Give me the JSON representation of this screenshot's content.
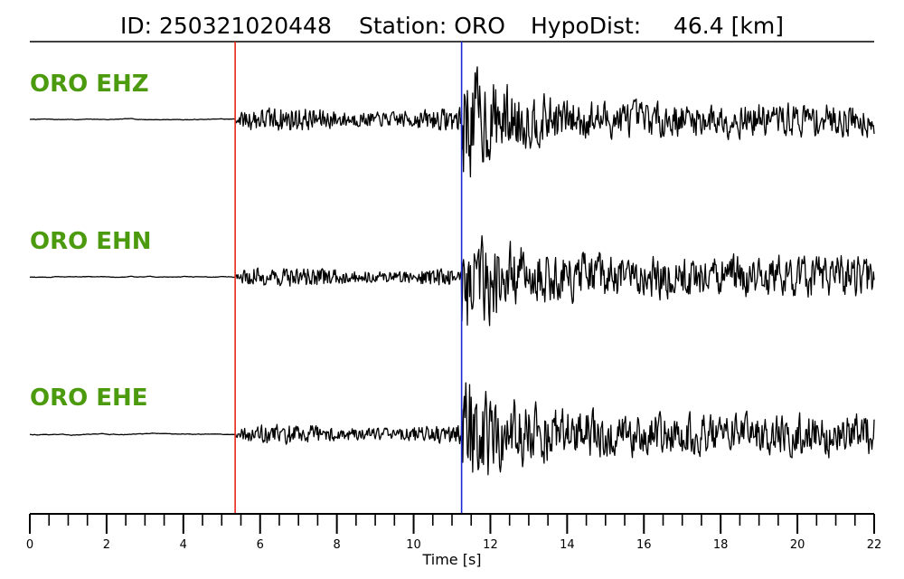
{
  "chart_data": {
    "type": "line",
    "title": {
      "id_text": "ID: 250321020448",
      "station_text": "Station: ORO",
      "hypodist_text": "HypoDist:",
      "hypodist_value": "46.4 [km]"
    },
    "xlabel": "Time [s]",
    "xlim": [
      0,
      22
    ],
    "major_ticks": [
      0,
      2,
      4,
      6,
      8,
      10,
      12,
      14,
      16,
      18,
      20,
      22
    ],
    "minor_tick_step": 0.5,
    "label_color": "#4c9a0e",
    "p_pick": {
      "time": 5.35,
      "color": "#e8261a"
    },
    "s_pick": {
      "time": 11.25,
      "color": "#1a2ad8"
    },
    "series": [
      {
        "name": "ORO EHZ",
        "noise_amp": 0.05,
        "p_amp": 0.17,
        "s_amp": 0.95,
        "coda_amp": 0.24,
        "seed": 7
      },
      {
        "name": "ORO EHN",
        "noise_amp": 0.04,
        "p_amp": 0.14,
        "s_amp": 0.9,
        "coda_amp": 0.3,
        "seed": 19
      },
      {
        "name": "ORO EHE",
        "noise_amp": 0.04,
        "p_amp": 0.14,
        "s_amp": 0.92,
        "coda_amp": 0.3,
        "seed": 43
      }
    ]
  }
}
